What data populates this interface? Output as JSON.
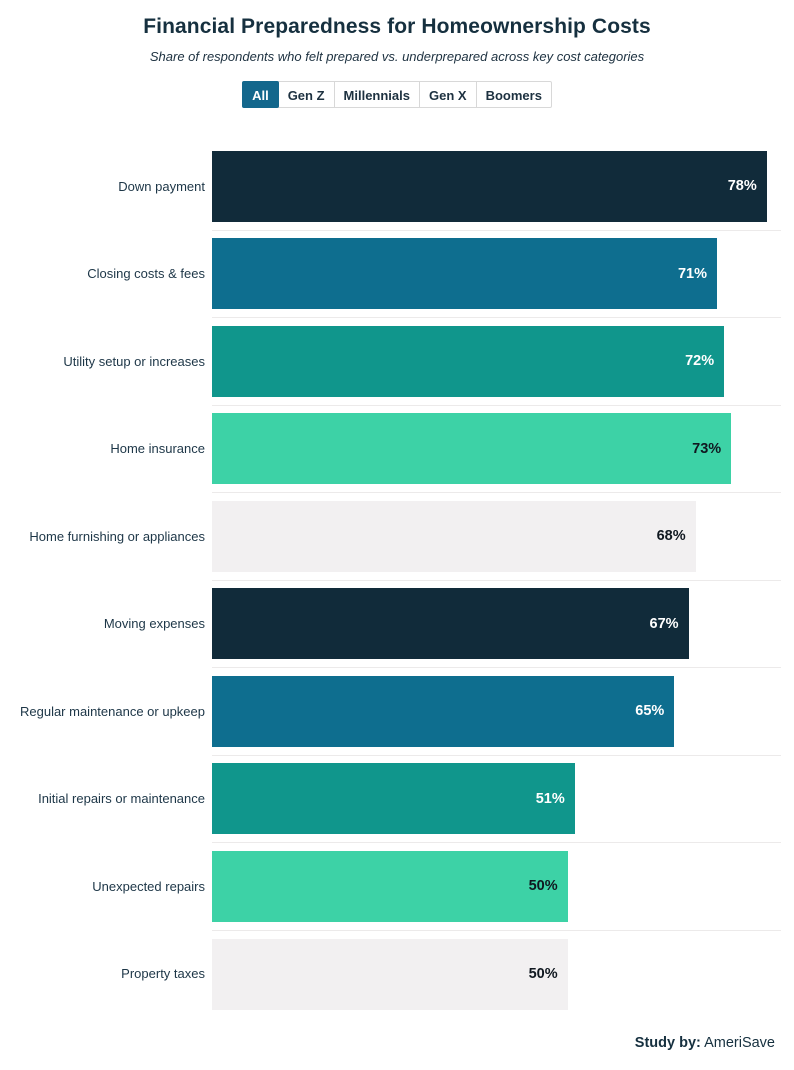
{
  "header": {
    "title": "Financial Preparedness for Homeownership Costs",
    "subtitle": "Share of respondents who felt prepared vs. underprepared across key cost categories"
  },
  "tabs": [
    {
      "label": "All",
      "selected": true
    },
    {
      "label": "Gen Z",
      "selected": false
    },
    {
      "label": "Millennials",
      "selected": false
    },
    {
      "label": "Gen X",
      "selected": false
    },
    {
      "label": "Boomers",
      "selected": false
    }
  ],
  "chart_data": {
    "type": "bar",
    "orientation": "horizontal",
    "title": "Financial Preparedness for Homeownership Costs",
    "subtitle": "Share of respondents who felt prepared vs. underprepared across key cost categories",
    "categories": [
      "Down payment",
      "Closing costs & fees",
      "Utility setup or increases",
      "Home insurance",
      "Home furnishing or appliances",
      "Moving expenses",
      "Regular maintenance or upkeep",
      "Initial repairs or maintenance",
      "Unexpected repairs",
      "Property taxes"
    ],
    "values": [
      78,
      71,
      72,
      73,
      68,
      67,
      65,
      51,
      50,
      50
    ],
    "value_labels": [
      "78%",
      "71%",
      "72%",
      "73%",
      "68%",
      "67%",
      "65%",
      "51%",
      "50%",
      "50%"
    ],
    "xlim": [
      0,
      80
    ],
    "grid": false,
    "legend": "none",
    "bar_colors": [
      "#112B3A",
      "#0E6E8F",
      "#10968C",
      "#3DD2A6",
      "#F2F0F1",
      "#112B3A",
      "#0E6E8F",
      "#10968C",
      "#3DD2A6",
      "#F2F0F1"
    ],
    "value_text_colors": [
      "#FFFFFF",
      "#FFFFFF",
      "#FFFFFF",
      "#101820",
      "#101820",
      "#FFFFFF",
      "#FFFFFF",
      "#FFFFFF",
      "#101820",
      "#101820"
    ]
  },
  "footer": {
    "study_by_label": "Study by:",
    "study_by_value": "AmeriSave"
  },
  "colors": {
    "accent_selected_tab": "#13678C",
    "title_text": "#16303F",
    "separator": "#ECEAEA",
    "navy": "#112B3A",
    "blue": "#0E6E8F",
    "teal": "#10968C",
    "mint": "#3DD2A6",
    "light_gray": "#F2F0F1"
  }
}
